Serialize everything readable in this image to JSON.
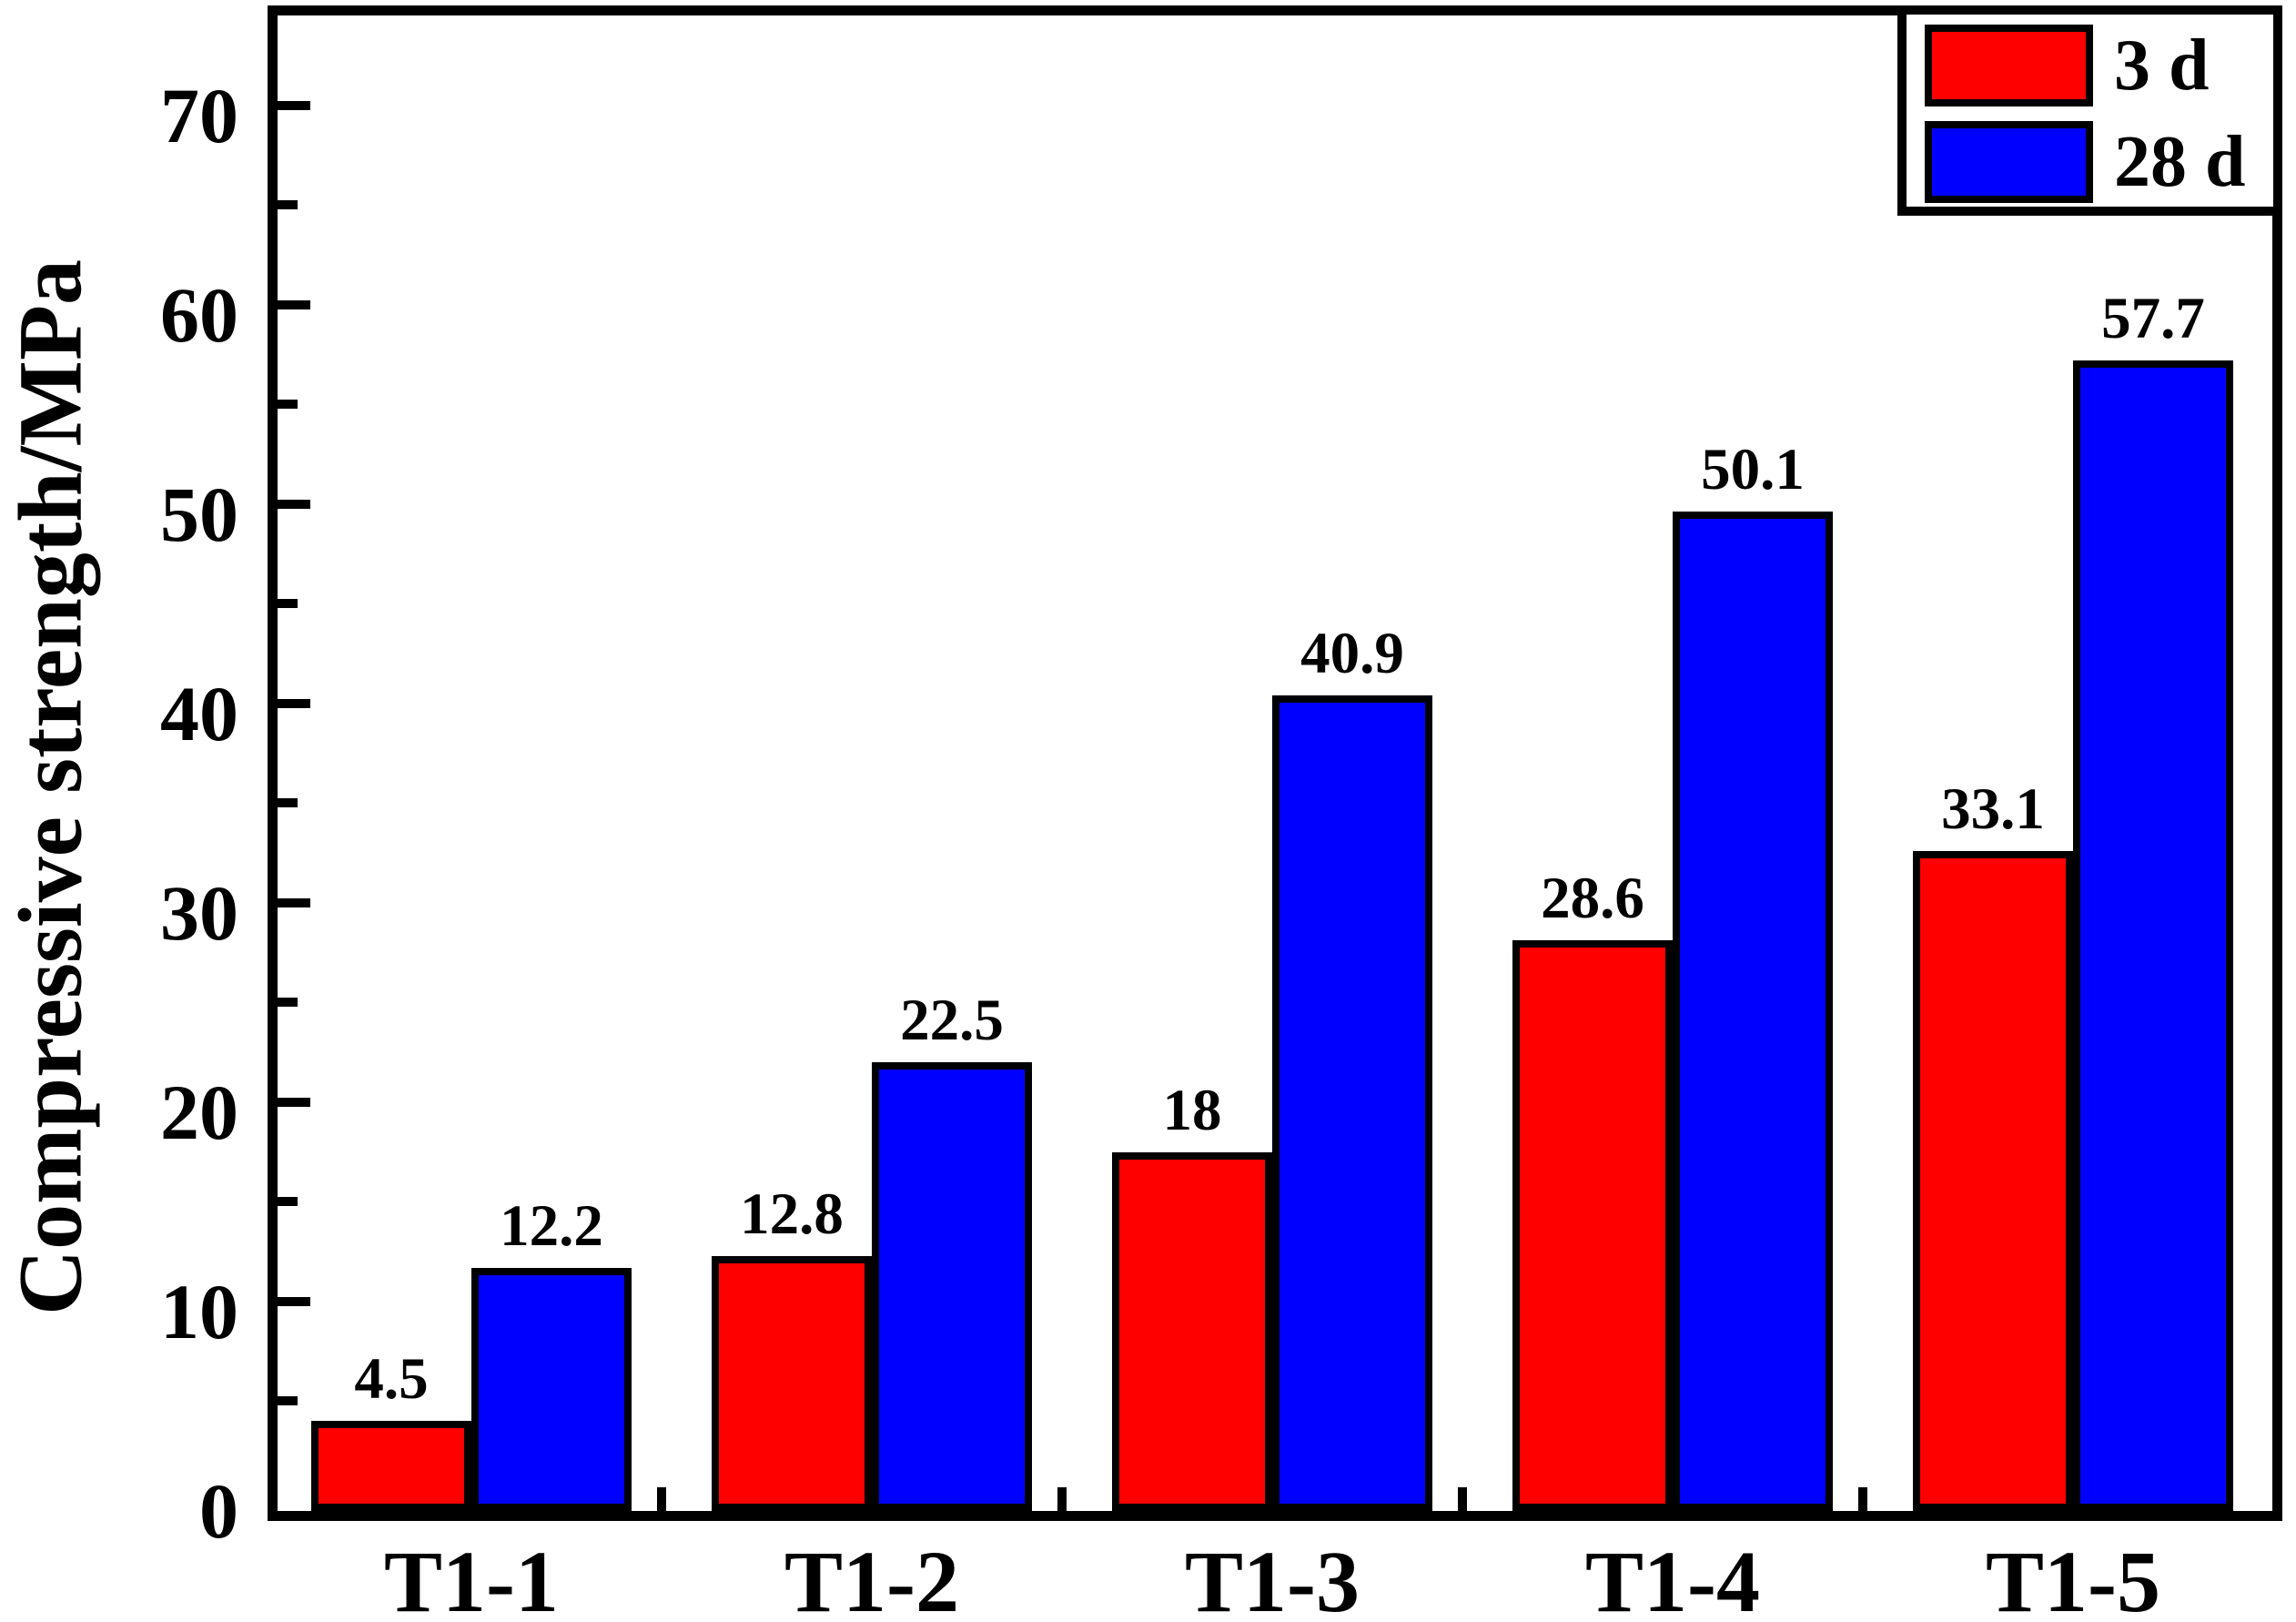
{
  "chart_data": {
    "type": "bar",
    "title": "",
    "xlabel": "",
    "ylabel": "Compressive strength/MPa",
    "categories": [
      "T1-1",
      "T1-2",
      "T1-3",
      "T1-4",
      "T1-5"
    ],
    "series": [
      {
        "name": "3 d",
        "color": "#ff0000",
        "values": [
          4.5,
          12.8,
          18,
          28.6,
          33.1
        ]
      },
      {
        "name": "28 d",
        "color": "#0000ff",
        "values": [
          12.2,
          22.5,
          40.9,
          50.1,
          57.7
        ]
      }
    ],
    "bar_value_labels": {
      "3 d": [
        "4.5",
        "12.8",
        "18",
        "28.6",
        "33.1"
      ],
      "28 d": [
        "12.2",
        "22.5",
        "40.9",
        "50.1",
        "57.7"
      ]
    },
    "ylim": [
      0,
      75
    ],
    "ytick_labels": [
      "0",
      "10",
      "20",
      "30",
      "40",
      "50",
      "60",
      "70"
    ],
    "ytick_interval": 10,
    "yminor_interval": 5,
    "grid": "off",
    "legend_position": "top-right",
    "frame_color": "#000000",
    "background_color": "#ffffff"
  }
}
